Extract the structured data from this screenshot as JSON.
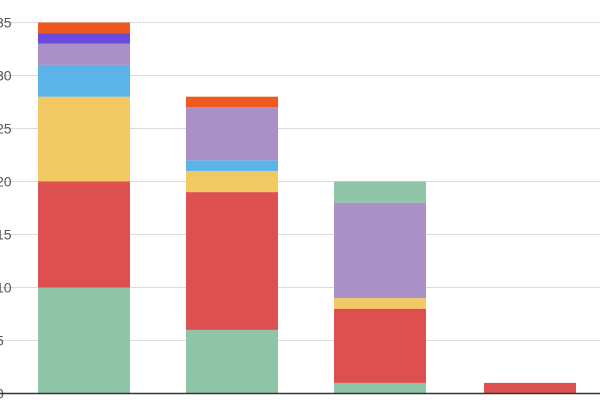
{
  "chart_data": {
    "type": "bar",
    "stacked": true,
    "categories": [
      "",
      "",
      "",
      ""
    ],
    "series": [
      {
        "color": "#8dc5a6",
        "values": [
          10,
          6,
          1,
          0
        ]
      },
      {
        "color": "#de4f4f",
        "values": [
          10,
          13,
          7,
          1
        ]
      },
      {
        "color": "#f2c862",
        "values": [
          8,
          2,
          1,
          0
        ]
      },
      {
        "color": "#5cb3e8",
        "values": [
          3,
          1,
          0,
          0
        ]
      },
      {
        "color": "#a991c8",
        "values": [
          2,
          5,
          9,
          0
        ]
      },
      {
        "color": "#6b4ae0",
        "values": [
          1,
          0,
          0,
          0
        ]
      },
      {
        "color": "#ee5a1e",
        "values": [
          1,
          1,
          0,
          0
        ]
      },
      {
        "color": "#8dc5a6",
        "values": [
          0,
          0,
          2,
          0
        ]
      }
    ],
    "y_tick_labels": [
      "0",
      "5",
      "10",
      "15",
      "20",
      "25",
      "30",
      "35"
    ],
    "ylim": [
      0,
      35
    ],
    "grid": true,
    "legend": "none",
    "gridline_color": "#dcdcdc",
    "baseline_color": "#333333"
  }
}
